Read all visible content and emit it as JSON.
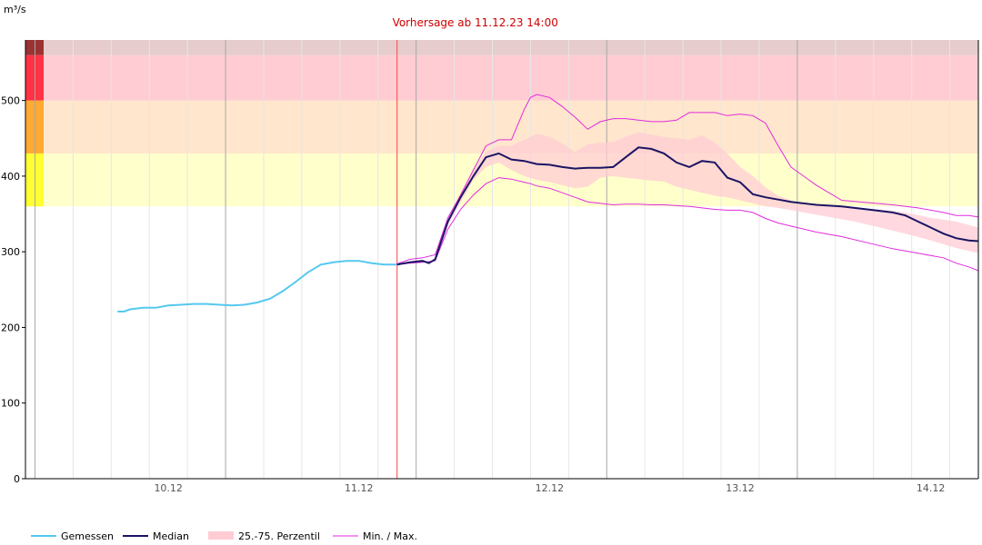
{
  "chart_data": {
    "type": "line",
    "title": "",
    "ylabel": "m³/s",
    "xlabel": "",
    "ylim": [
      0,
      580
    ],
    "xlim_hours": [
      -58.5,
      91.5
    ],
    "y_ticks": [
      0,
      100,
      200,
      300,
      400,
      500
    ],
    "x_ticks": [
      {
        "label": "10.12",
        "t": -36
      },
      {
        "label": "11.12",
        "t": -6
      },
      {
        "label": "12.12",
        "t": 24
      },
      {
        "label": "13.12",
        "t": 54
      },
      {
        "label": "14.12",
        "t": 84
      }
    ],
    "forecast_annotation": "Vorhersage ab 11.12.23 14:00",
    "forecast_t": 0,
    "warning_levels": [
      {
        "from": 360,
        "to": 430,
        "color": "#ffff33",
        "band": "#ffffcc"
      },
      {
        "from": 430,
        "to": 500,
        "color": "#ffaa33",
        "band": "#ffe6cc"
      },
      {
        "from": 500,
        "to": 560,
        "color": "#ff3344",
        "band": "#ffccd4"
      },
      {
        "from": 560,
        "to": 590,
        "color": "#993333",
        "band": "#e6cccc"
      }
    ],
    "series": [
      {
        "name": "Gemessen",
        "color": "#55c8f0",
        "t": [
          -44,
          -43,
          -42,
          -40,
          -38,
          -36,
          -34,
          -32,
          -30,
          -28,
          -26,
          -24,
          -22,
          -20,
          -18,
          -16,
          -14,
          -12,
          -10,
          -8,
          -6,
          -4,
          -2,
          0
        ],
        "values": [
          221,
          221,
          224,
          226,
          226,
          229,
          230,
          231,
          231,
          230,
          229,
          230,
          233,
          238,
          248,
          260,
          273,
          283,
          286,
          288,
          288,
          285,
          283,
          283
        ]
      },
      {
        "name": "Median",
        "color": "#1b1464",
        "t": [
          0,
          2,
          4,
          5,
          6,
          8,
          10,
          12,
          14,
          16,
          18,
          20,
          22,
          24,
          26,
          28,
          30,
          32,
          34,
          36,
          38,
          40,
          42,
          44,
          46,
          48,
          50,
          52,
          54,
          56,
          58,
          60,
          62,
          66,
          70,
          74,
          78,
          80,
          82,
          84,
          86,
          88,
          90,
          91.5
        ],
        "values": [
          283,
          286,
          288,
          285,
          290,
          340,
          372,
          400,
          425,
          430,
          422,
          420,
          416,
          415,
          412,
          410,
          411,
          411,
          412,
          425,
          438,
          436,
          430,
          418,
          412,
          420,
          418,
          398,
          392,
          376,
          372,
          369,
          366,
          362,
          360,
          356,
          352,
          348,
          340,
          332,
          324,
          318,
          315,
          314
        ]
      },
      {
        "name": "25.-75. Perzentil",
        "color": "#ffccd4",
        "t": [
          6,
          8,
          10,
          12,
          14,
          16,
          18,
          20,
          22,
          24,
          26,
          28,
          30,
          32,
          34,
          36,
          38,
          40,
          42,
          44,
          46,
          48,
          50,
          52,
          54,
          56,
          58,
          60,
          64,
          68,
          72,
          76,
          80,
          84,
          88,
          91.5
        ],
        "upper": [
          292,
          345,
          378,
          410,
          432,
          440,
          440,
          448,
          456,
          452,
          443,
          432,
          442,
          444,
          445,
          452,
          458,
          455,
          452,
          450,
          448,
          454,
          444,
          430,
          412,
          400,
          385,
          374,
          362,
          360,
          358,
          356,
          352,
          345,
          340,
          332
        ],
        "lower": [
          288,
          335,
          365,
          395,
          412,
          418,
          408,
          400,
          395,
          392,
          388,
          384,
          386,
          398,
          400,
          398,
          396,
          394,
          393,
          386,
          382,
          378,
          374,
          372,
          368,
          364,
          360,
          358,
          352,
          346,
          340,
          332,
          324,
          315,
          305,
          298
        ]
      },
      {
        "name": "Min. / Max.",
        "color": "#e02bdf",
        "t": [
          0,
          2,
          4,
          6,
          8,
          10,
          12,
          14,
          16,
          18,
          20,
          21,
          22,
          24,
          26,
          28,
          30,
          32,
          34,
          36,
          38,
          40,
          42,
          44,
          46,
          48,
          50,
          52,
          54,
          56,
          58,
          60,
          62,
          66,
          70,
          74,
          78,
          82,
          86,
          88,
          90,
          91.5
        ],
        "upper": [
          284,
          290,
          292,
          296,
          345,
          375,
          408,
          440,
          448,
          448,
          488,
          504,
          508,
          504,
          492,
          478,
          462,
          472,
          476,
          476,
          474,
          472,
          472,
          474,
          484,
          484,
          484,
          480,
          482,
          480,
          470,
          440,
          412,
          388,
          368,
          365,
          362,
          358,
          352,
          348,
          348,
          346
        ],
        "lower": [
          283,
          285,
          286,
          288,
          330,
          356,
          375,
          390,
          398,
          396,
          392,
          390,
          387,
          384,
          378,
          372,
          366,
          364,
          362,
          363,
          363,
          362,
          362,
          361,
          360,
          358,
          356,
          355,
          355,
          352,
          344,
          338,
          334,
          326,
          320,
          312,
          304,
          298,
          292,
          285,
          280,
          275
        ]
      }
    ],
    "legend": {
      "position": "bottom-left",
      "items": [
        {
          "label": "Gemessen",
          "kind": "line",
          "color": "#55c8f0"
        },
        {
          "label": "Median",
          "kind": "line",
          "color": "#1b1464"
        },
        {
          "label": "25.-75. Perzentil",
          "kind": "band",
          "color": "#ffccd4"
        },
        {
          "label": "Min. / Max.",
          "kind": "line",
          "color": "#e02bdf"
        }
      ]
    },
    "grid": true
  }
}
